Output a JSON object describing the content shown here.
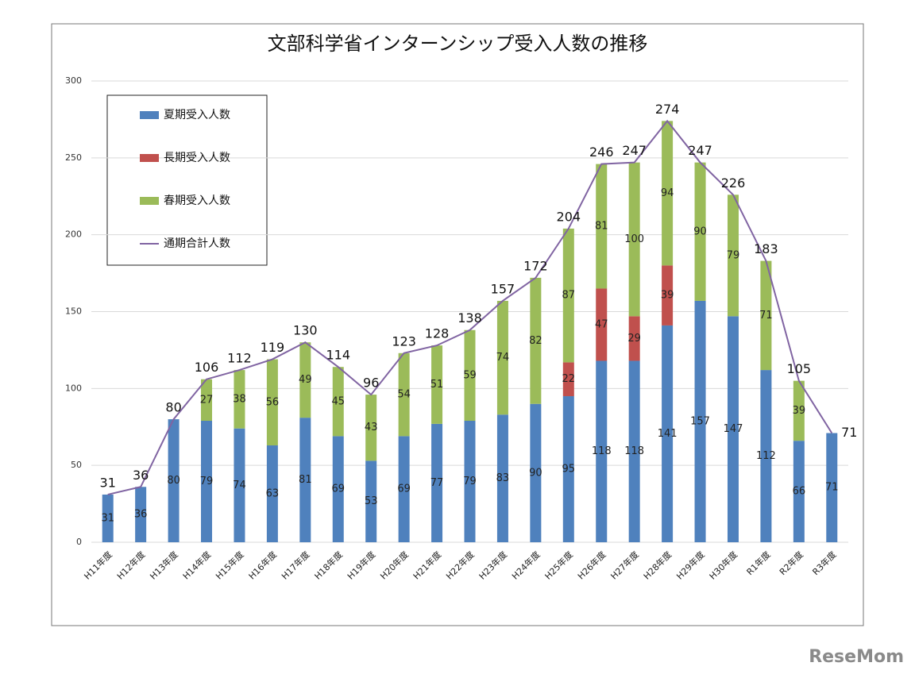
{
  "chart_data": {
    "type": "bar",
    "stacked": true,
    "grid": true,
    "title": "文部科学省インターンシップ受入人数の推移",
    "categories": [
      "H11年度",
      "H12年度",
      "H13年度",
      "H14年度",
      "H15年度",
      "H16年度",
      "H17年度",
      "H18年度",
      "H19年度",
      "H20年度",
      "H21年度",
      "H22年度",
      "H23年度",
      "H24年度",
      "H25年度",
      "H26年度",
      "H27年度",
      "H28年度",
      "H29年度",
      "H30年度",
      "R1年度",
      "R2年度",
      "R3年度"
    ],
    "series": [
      {
        "name": "夏期受入人数",
        "type": "bar",
        "color": "#4f81bd",
        "values": [
          31,
          36,
          80,
          79,
          74,
          63,
          81,
          69,
          53,
          69,
          77,
          79,
          83,
          90,
          95,
          118,
          118,
          141,
          157,
          147,
          112,
          66,
          71
        ]
      },
      {
        "name": "長期受入人数",
        "type": "bar",
        "color": "#c0504d",
        "values": [
          null,
          null,
          null,
          null,
          null,
          null,
          null,
          null,
          null,
          null,
          null,
          null,
          null,
          null,
          22,
          47,
          29,
          39,
          null,
          null,
          null,
          null,
          null
        ]
      },
      {
        "name": "春期受入人数",
        "type": "bar",
        "color": "#9bbb59",
        "values": [
          null,
          null,
          null,
          27,
          38,
          56,
          49,
          45,
          43,
          54,
          51,
          59,
          74,
          82,
          87,
          81,
          100,
          94,
          90,
          79,
          71,
          39,
          null
        ]
      },
      {
        "name": "通期合計人数",
        "type": "line",
        "color": "#8064a2",
        "values": [
          31,
          36,
          80,
          106,
          112,
          119,
          130,
          114,
          96,
          123,
          128,
          138,
          157,
          172,
          204,
          246,
          247,
          274,
          247,
          226,
          183,
          105,
          71
        ]
      }
    ],
    "ylim": [
      0,
      300
    ],
    "yticks": [
      0,
      50,
      100,
      150,
      200,
      250,
      300
    ],
    "watermark": "ReseMom"
  }
}
